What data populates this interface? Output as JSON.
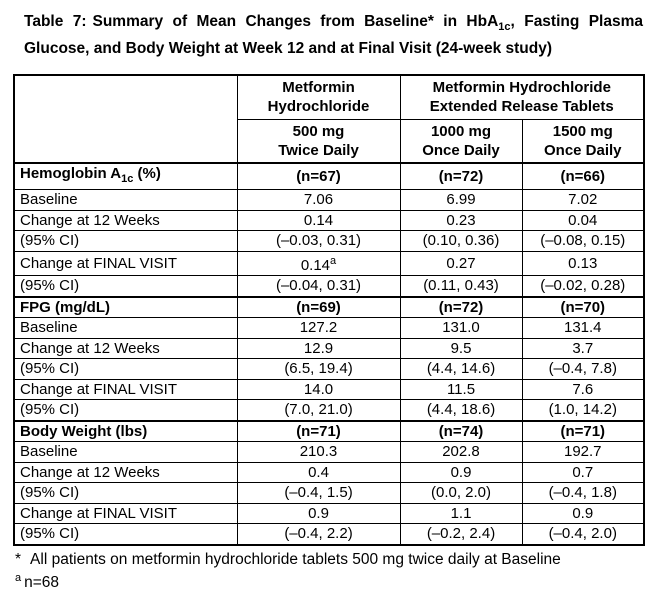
{
  "title": {
    "label": "Table 7:",
    "before_asterisk": "Summary of Mean Changes from Baseline",
    "asterisk": "*",
    "mid": " in HbA",
    "subscript": "1c",
    "after": ", Fasting Plasma Glucose, and Body Weight at Week 12 and at Final Visit (24-week study)"
  },
  "table": {
    "header": {
      "group1": "Metformin Hydrochloride",
      "group2": "Metformin Hydrochloride Extended Release Tablets",
      "doses": [
        {
          "amount": "500 mg",
          "schedule": "Twice Daily"
        },
        {
          "amount": "1000 mg",
          "schedule": "Once Daily"
        },
        {
          "amount": "1500 mg",
          "schedule": "Once Daily"
        }
      ]
    },
    "sections": [
      {
        "title_main": "Hemoglobin A",
        "title_sub": "1c",
        "title_suffix": " (%)",
        "n_values": [
          "(n=67)",
          "(n=72)",
          "(n=66)"
        ],
        "rows": [
          {
            "label": "Baseline",
            "values": [
              "7.06",
              "6.99",
              "7.02"
            ],
            "sups": [
              "",
              "",
              ""
            ]
          },
          {
            "label": "Change at 12 Weeks",
            "values": [
              "0.14",
              "0.23",
              "0.04"
            ],
            "sups": [
              "",
              "",
              ""
            ]
          },
          {
            "label": "(95% CI)",
            "values": [
              "(–0.03, 0.31)",
              "(0.10, 0.36)",
              "(–0.08, 0.15)"
            ],
            "sups": [
              "",
              "",
              ""
            ]
          },
          {
            "label": "Change at FINAL VISIT",
            "values": [
              "0.14",
              "0.27",
              "0.13"
            ],
            "sups": [
              "a",
              "",
              ""
            ]
          },
          {
            "label": "(95% CI)",
            "values": [
              "(–0.04, 0.31)",
              "(0.11, 0.43)",
              "(–0.02, 0.28)"
            ],
            "sups": [
              "",
              "",
              ""
            ]
          }
        ]
      },
      {
        "title_main": "FPG (mg/dL)",
        "title_sub": "",
        "title_suffix": "",
        "n_values": [
          "(n=69)",
          "(n=72)",
          "(n=70)"
        ],
        "rows": [
          {
            "label": "Baseline",
            "values": [
              "127.2",
              "131.0",
              "131.4"
            ],
            "sups": [
              "",
              "",
              ""
            ]
          },
          {
            "label": "Change at 12 Weeks",
            "values": [
              "12.9",
              "9.5",
              "3.7"
            ],
            "sups": [
              "",
              "",
              ""
            ]
          },
          {
            "label": "(95% CI)",
            "values": [
              "(6.5, 19.4)",
              "(4.4, 14.6)",
              "(–0.4, 7.8)"
            ],
            "sups": [
              "",
              "",
              ""
            ]
          },
          {
            "label": "Change at FINAL VISIT",
            "values": [
              "14.0",
              "11.5",
              "7.6"
            ],
            "sups": [
              "",
              "",
              ""
            ]
          },
          {
            "label": "(95% CI)",
            "values": [
              "(7.0, 21.0)",
              "(4.4, 18.6)",
              "(1.0, 14.2)"
            ],
            "sups": [
              "",
              "",
              ""
            ]
          }
        ]
      },
      {
        "title_main": "Body Weight (lbs)",
        "title_sub": "",
        "title_suffix": "",
        "n_values": [
          "(n=71)",
          "(n=74)",
          "(n=71)"
        ],
        "rows": [
          {
            "label": "Baseline",
            "values": [
              "210.3",
              "202.8",
              "192.7"
            ],
            "sups": [
              "",
              "",
              ""
            ]
          },
          {
            "label": "Change at 12 Weeks",
            "values": [
              "0.4",
              "0.9",
              "0.7"
            ],
            "sups": [
              "",
              "",
              ""
            ]
          },
          {
            "label": "(95% CI)",
            "values": [
              "(–0.4, 1.5)",
              "(0.0, 2.0)",
              "(–0.4, 1.8)"
            ],
            "sups": [
              "",
              "",
              ""
            ]
          },
          {
            "label": "Change at FINAL VISIT",
            "values": [
              "0.9",
              "1.1",
              "0.9"
            ],
            "sups": [
              "",
              "",
              ""
            ]
          },
          {
            "label": "(95% CI)",
            "values": [
              "(–0.4, 2.2)",
              "(–0.2, 2.4)",
              "(–0.4, 2.0)"
            ],
            "sups": [
              "",
              "",
              ""
            ]
          }
        ]
      }
    ]
  },
  "footnotes": {
    "asterisk_symbol": "*",
    "asterisk_text": "All patients on metformin hydrochloride tablets 500 mg twice daily at Baseline",
    "a_symbol": "a",
    "a_text": "n=68"
  }
}
